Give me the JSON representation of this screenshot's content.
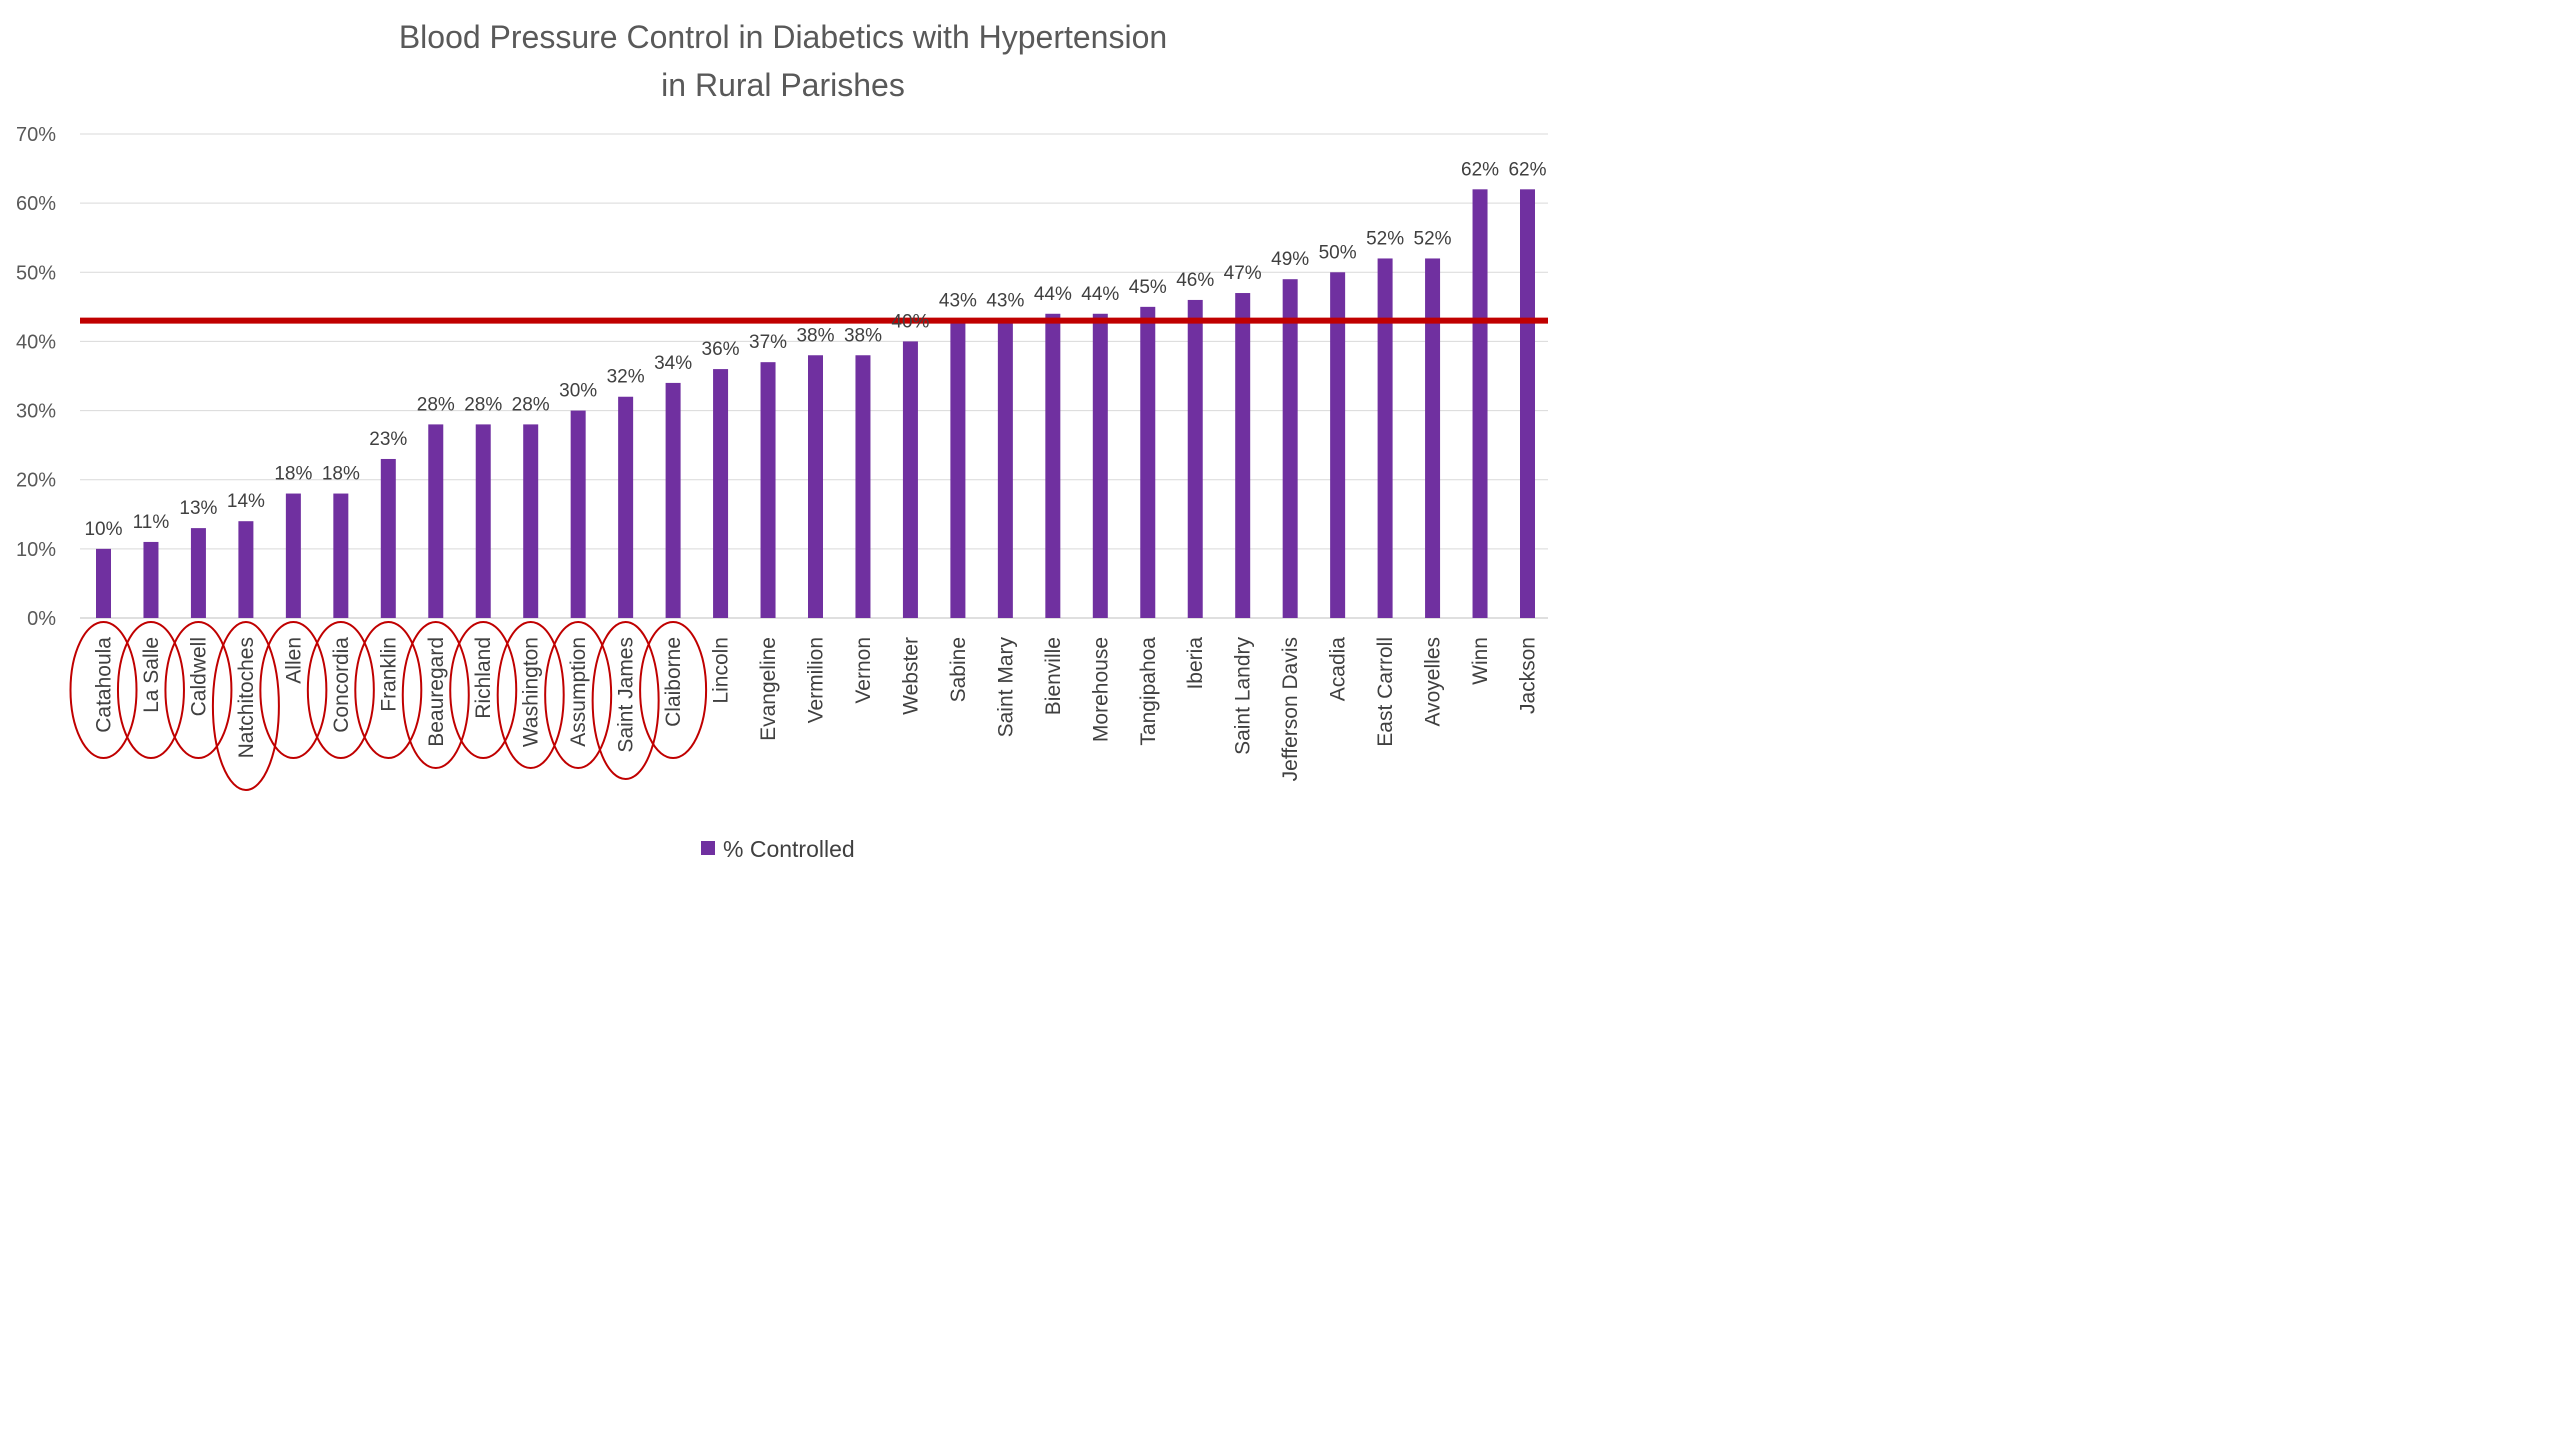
{
  "chart_data": {
    "type": "bar",
    "title_lines": [
      "Blood Pressure Control in Diabetics with Hypertension",
      "in Rural Parishes"
    ],
    "categories": [
      "Catahoula",
      "La Salle",
      "Caldwell",
      "Natchitoches",
      "Allen",
      "Concordia",
      "Franklin",
      "Beauregard",
      "Richland",
      "Washington",
      "Assumption",
      "Saint James",
      "Claiborne",
      "Lincoln",
      "Evangeline",
      "Vermilion",
      "Vernon",
      "Webster",
      "Sabine",
      "Saint Mary",
      "Bienville",
      "Morehouse",
      "Tangipahoa",
      "Iberia",
      "Saint Landry",
      "Jefferson Davis",
      "Acadia",
      "East Carroll",
      "Avoyelles",
      "Winn",
      "Jackson"
    ],
    "series": [
      {
        "name": "% Controlled",
        "color": "#7030A0",
        "values": [
          10,
          11,
          13,
          14,
          18,
          18,
          23,
          28,
          28,
          28,
          30,
          32,
          34,
          36,
          37,
          38,
          38,
          40,
          43,
          43,
          44,
          44,
          45,
          46,
          47,
          49,
          50,
          52,
          52,
          62,
          62
        ],
        "labels": [
          "10%",
          "11%",
          "13%",
          "14%",
          "18%",
          "18%",
          "23%",
          "28%",
          "28%",
          "28%",
          "30%",
          "32%",
          "34%",
          "36%",
          "37%",
          "38%",
          "38%",
          "40%",
          "43%",
          "43%",
          "44%",
          "44%",
          "45%",
          "46%",
          "47%",
          "49%",
          "50%",
          "52%",
          "52%",
          "62%",
          "62%"
        ]
      }
    ],
    "y_ticks": [
      "0%",
      "10%",
      "20%",
      "30%",
      "40%",
      "50%",
      "60%",
      "70%"
    ],
    "ylim": [
      0,
      70
    ],
    "grid": true,
    "legend_position": "bottom",
    "reference_line": {
      "value": 43,
      "color": "#C00000"
    },
    "circled_categories": [
      "Catahoula",
      "La Salle",
      "Caldwell",
      "Natchitoches",
      "Allen",
      "Concordia",
      "Franklin",
      "Beauregard",
      "Richland",
      "Washington",
      "Assumption",
      "Saint James",
      "Claiborne"
    ],
    "circle_color": "#C00000"
  }
}
